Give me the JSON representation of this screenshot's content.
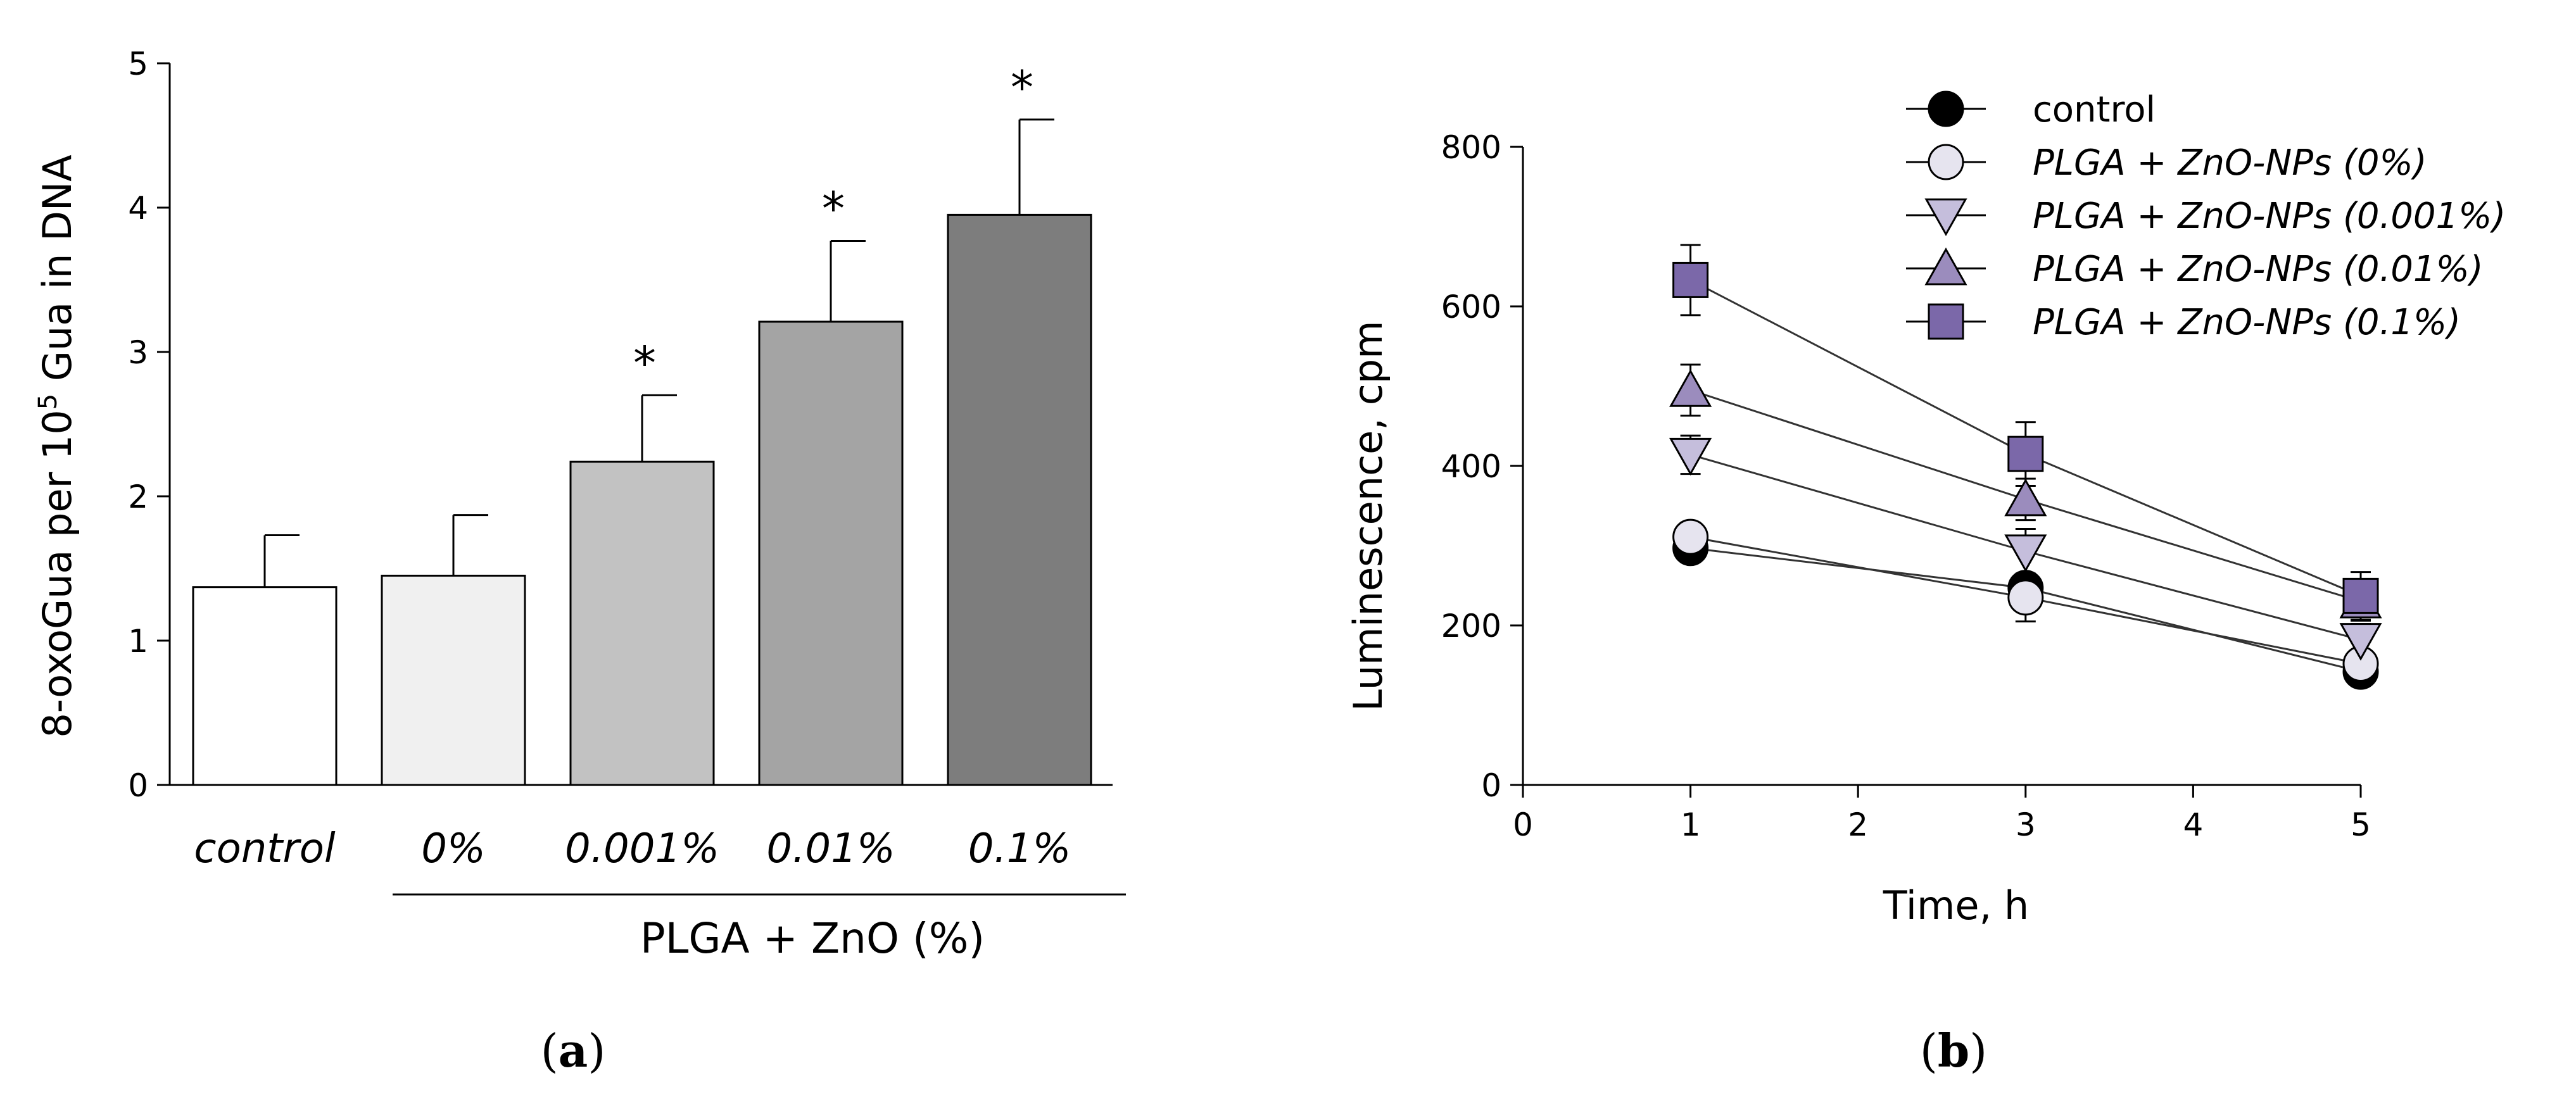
{
  "figure": {
    "panel_a_label": "a",
    "panel_b_label": "b"
  },
  "chart_data": [
    {
      "type": "bar",
      "panel": "a",
      "categories": [
        "control",
        "0%",
        "0.001%",
        "0.01%",
        "0.1%"
      ],
      "values": [
        1.37,
        1.45,
        2.24,
        3.21,
        3.95
      ],
      "errors": [
        0.36,
        0.42,
        0.46,
        0.56,
        0.66
      ],
      "significant": [
        false,
        false,
        true,
        true,
        true
      ],
      "significance_marker": "*",
      "colors": [
        "#ffffff",
        "#f0f0f0",
        "#c2c2c2",
        "#a4a4a4",
        "#7d7d7d"
      ],
      "ylabel_pre": "8-oxoGua per 10",
      "ylabel_sup": "5",
      "ylabel_post": " Gua in DNA",
      "group_label": "PLGA + ZnO (%)",
      "ylim": [
        0,
        5
      ],
      "yticks": [
        0,
        1,
        2,
        3,
        4,
        5
      ]
    },
    {
      "type": "line",
      "panel": "b",
      "x": [
        1,
        3,
        5
      ],
      "xlabel": "Time, h",
      "ylabel": "Luminescence, cpm",
      "xlim": [
        0,
        5
      ],
      "ylim": [
        0,
        800
      ],
      "xticks": [
        0,
        1,
        2,
        3,
        4,
        5
      ],
      "yticks": [
        0,
        200,
        400,
        600,
        800
      ],
      "legend_position": "top-right",
      "series": [
        {
          "name": "control",
          "italic": false,
          "marker": "circle",
          "fill": "#000000",
          "values": [
            297,
            247,
            142
          ],
          "errors": [
            14,
            14,
            12
          ]
        },
        {
          "name": "PLGA + ZnO-NPs (0%)",
          "italic": true,
          "marker": "circle",
          "fill": "#e6e4ef",
          "values": [
            311,
            235,
            152
          ],
          "errors": [
            18,
            30,
            14
          ]
        },
        {
          "name": "PLGA + ZnO-NPs (0.001%)",
          "italic": true,
          "marker": "triangle-down",
          "fill": "#c5bedc",
          "values": [
            414,
            293,
            182
          ],
          "errors": [
            24,
            28,
            20
          ]
        },
        {
          "name": "PLGA + ZnO-NPs (0.01%)",
          "italic": true,
          "marker": "triangle-up",
          "fill": "#9b8cbd",
          "values": [
            495,
            358,
            230
          ],
          "errors": [
            32,
            26,
            24
          ]
        },
        {
          "name": "PLGA + ZnO-NPs (0.1%)",
          "italic": true,
          "marker": "square",
          "fill": "#7b68a9",
          "values": [
            633,
            415,
            237
          ],
          "errors": [
            44,
            40,
            30
          ]
        }
      ]
    }
  ]
}
